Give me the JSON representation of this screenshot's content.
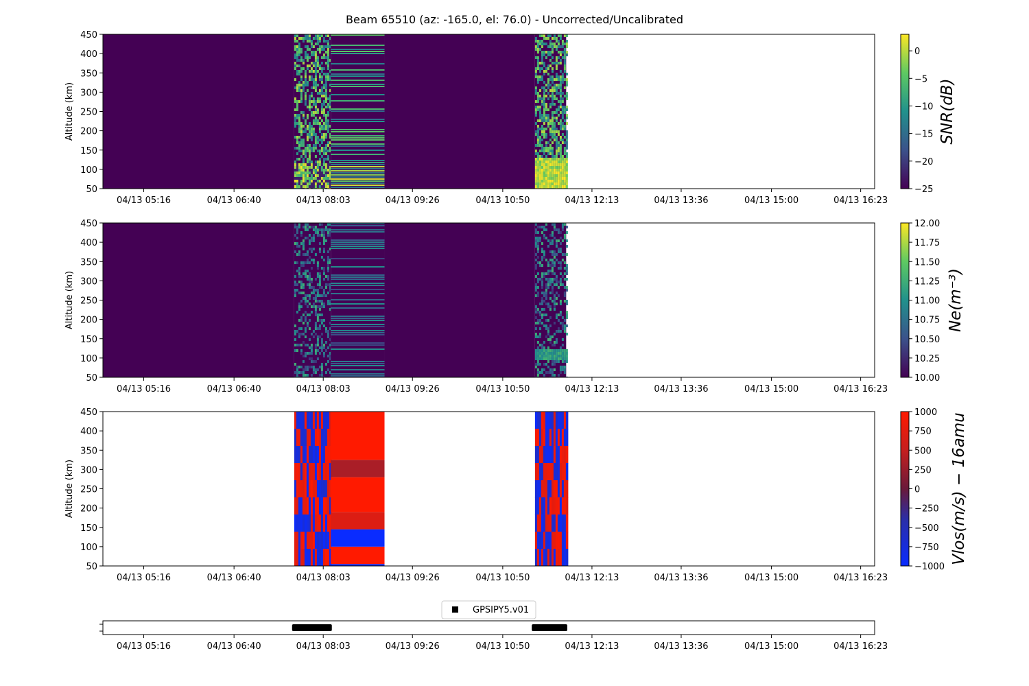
{
  "figure": {
    "title": "Beam 65510 (az: -165.0, el: 76.0) - Uncorrected/Uncalibrated"
  },
  "colors": {
    "viridis": [
      "#440154",
      "#3b528b",
      "#21918c",
      "#5ec962",
      "#fde725"
    ],
    "bwr": [
      "#0a2cff",
      "#2a2ea8",
      "#6a1a3a",
      "#c51f1f",
      "#ff1a00"
    ],
    "timeline_bar": "#000000"
  },
  "chart_data": [
    {
      "type": "heatmap",
      "panel": "snr",
      "ylabel": "Altitude (km)",
      "ylim": [
        50,
        450
      ],
      "yticks": [
        50,
        100,
        150,
        200,
        250,
        300,
        350,
        400,
        450
      ],
      "x_tick_labels": [
        "04/13 05:16",
        "04/13 06:40",
        "04/13 08:03",
        "04/13 09:26",
        "04/13 10:50",
        "04/13 12:13",
        "04/13 13:36",
        "04/13 15:00",
        "04/13 16:23"
      ],
      "xlim": [
        "04/13 04:38",
        "04/13 16:36"
      ],
      "blocks": [
        {
          "start": "04/13 04:38",
          "end": "04/13 07:36",
          "fill": "min"
        },
        {
          "start": "04/13 07:36",
          "end": "04/13 08:10",
          "fill": "noise"
        },
        {
          "start": "04/13 08:10",
          "end": "04/13 09:00",
          "fill": "bands"
        },
        {
          "start": "04/13 09:00",
          "end": "04/13 11:20",
          "fill": "min"
        },
        {
          "start": "04/13 11:20",
          "end": "04/13 11:49",
          "fill": "noise_strong_low"
        }
      ],
      "colorbar": {
        "label": "SNR(dB)",
        "range": [
          -25,
          3
        ],
        "ticks": [
          0,
          -5,
          -10,
          -15,
          -20,
          -25
        ]
      }
    },
    {
      "type": "heatmap",
      "panel": "ne",
      "ylabel": "Altitude (km)",
      "ylim": [
        50,
        450
      ],
      "yticks": [
        50,
        100,
        150,
        200,
        250,
        300,
        350,
        400,
        450
      ],
      "x_tick_labels": [
        "04/13 05:16",
        "04/13 06:40",
        "04/13 08:03",
        "04/13 09:26",
        "04/13 10:50",
        "04/13 12:13",
        "04/13 13:36",
        "04/13 15:00",
        "04/13 16:23"
      ],
      "xlim": [
        "04/13 04:38",
        "04/13 16:36"
      ],
      "blocks": [
        {
          "start": "04/13 04:38",
          "end": "04/13 07:36",
          "fill": "min"
        },
        {
          "start": "04/13 07:36",
          "end": "04/13 08:10",
          "fill": "noise"
        },
        {
          "start": "04/13 08:10",
          "end": "04/13 09:00",
          "fill": "bands"
        },
        {
          "start": "04/13 09:00",
          "end": "04/13 11:20",
          "fill": "min"
        },
        {
          "start": "04/13 11:20",
          "end": "04/13 11:49",
          "fill": "noise_low"
        }
      ],
      "colorbar": {
        "label": "Ne(m⁻³)",
        "range": [
          10.0,
          12.0
        ],
        "ticks": [
          "12.00",
          "11.75",
          "11.50",
          "11.25",
          "11.00",
          "10.75",
          "10.50",
          "10.25",
          "10.00"
        ]
      }
    },
    {
      "type": "heatmap",
      "panel": "vlos",
      "ylabel": "Altitude (km)",
      "ylim": [
        50,
        450
      ],
      "yticks": [
        50,
        100,
        150,
        200,
        250,
        300,
        350,
        400,
        450
      ],
      "x_tick_labels": [
        "04/13 05:16",
        "04/13 06:40",
        "04/13 08:03",
        "04/13 09:26",
        "04/13 10:50",
        "04/13 12:13",
        "04/13 13:36",
        "04/13 15:00",
        "04/13 16:23"
      ],
      "xlim": [
        "04/13 04:38",
        "04/13 16:36"
      ],
      "blocks": [
        {
          "start": "04/13 07:36",
          "end": "04/13 08:10",
          "fill": "stripes"
        },
        {
          "start": "04/13 08:10",
          "end": "04/13 09:00",
          "fill": "altitude_bands"
        },
        {
          "start": "04/13 11:20",
          "end": "04/13 11:49",
          "fill": "stripes"
        }
      ],
      "altitude_bands": [
        {
          "from": 50,
          "to": 55,
          "value": -900
        },
        {
          "from": 55,
          "to": 100,
          "value": 1000
        },
        {
          "from": 100,
          "to": 145,
          "value": -1000
        },
        {
          "from": 145,
          "to": 190,
          "value": 700
        },
        {
          "from": 190,
          "to": 280,
          "value": 1000
        },
        {
          "from": 280,
          "to": 325,
          "value": 350
        },
        {
          "from": 325,
          "to": 450,
          "value": 1000
        }
      ],
      "colorbar": {
        "label": "Vlos(m/s) − 16amu",
        "range": [
          -1000,
          1000
        ],
        "ticks": [
          1000,
          750,
          500,
          250,
          0,
          -250,
          -500,
          -750,
          -1000
        ]
      }
    },
    {
      "type": "bar",
      "panel": "timeline",
      "legend": "GPSIPY5.v01",
      "x_tick_labels": [
        "04/13 05:16",
        "04/13 06:40",
        "04/13 08:03",
        "04/13 09:26",
        "04/13 10:50",
        "04/13 12:13",
        "04/13 13:36",
        "04/13 15:00",
        "04/13 16:23"
      ],
      "xlim": [
        "04/13 04:38",
        "04/13 16:36"
      ],
      "intervals": [
        {
          "start": "04/13 07:34",
          "end": "04/13 08:11"
        },
        {
          "start": "04/13 11:17",
          "end": "04/13 11:50"
        }
      ]
    }
  ]
}
